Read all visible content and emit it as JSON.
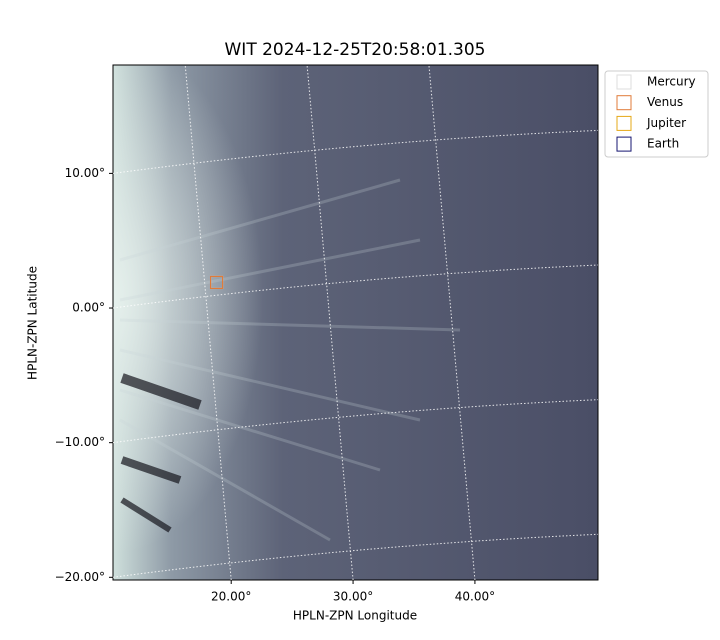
{
  "chart_data": {
    "type": "image",
    "title": "WIT 2024-12-25T20:58:01.305",
    "x_label": "HPLN-ZPN Longitude",
    "y_label": "HPLN-ZPN Latitude",
    "xlim": [
      10.3,
      50.1
    ],
    "ylim": [
      -20.2,
      18.05
    ],
    "xticks": [
      {
        "value": 20,
        "label": "20.00°"
      },
      {
        "value": 30,
        "label": "30.00°"
      },
      {
        "value": 40,
        "label": "40.00°"
      }
    ],
    "yticks": [
      {
        "value": -20,
        "label": "−20.00°"
      },
      {
        "value": -10,
        "label": "−10.00°"
      },
      {
        "value": 0,
        "label": "0.00°"
      },
      {
        "value": 10,
        "label": "10.00°"
      }
    ],
    "grid": true,
    "legend": "upper right",
    "series": [
      {
        "name": "Mercury",
        "color": "#dddddd",
        "x": [
          18.8
        ],
        "y": [
          1.9
        ]
      },
      {
        "name": "Venus",
        "color": "#e07b39",
        "x": [
          18.8
        ],
        "y": [
          1.9
        ]
      },
      {
        "name": "Jupiter",
        "color": "#e6a817",
        "x": [],
        "y": []
      },
      {
        "name": "Earth",
        "color": "#141470",
        "x": [],
        "y": []
      }
    ]
  }
}
